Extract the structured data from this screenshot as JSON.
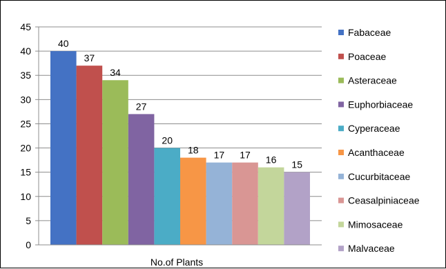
{
  "chart_data": {
    "type": "bar",
    "xlabel": "No.of Plants",
    "ylabel": "",
    "title": "",
    "ylim": [
      0,
      45
    ],
    "yticks": [
      0,
      5,
      10,
      15,
      20,
      25,
      30,
      35,
      40,
      45
    ],
    "grid": true,
    "legend_position": "right",
    "series": [
      {
        "name": "Fabaceae",
        "value": 40,
        "color": "#4472C4"
      },
      {
        "name": "Poaceae",
        "value": 37,
        "color": "#C0504D"
      },
      {
        "name": "Asteraceae",
        "value": 34,
        "color": "#9BBB59"
      },
      {
        "name": "Euphorbiaceae",
        "value": 27,
        "color": "#8064A2"
      },
      {
        "name": "Cyperaceae",
        "value": 20,
        "color": "#4BACC6"
      },
      {
        "name": "Acanthaceae",
        "value": 18,
        "color": "#F79646"
      },
      {
        "name": "Cucurbitaceae",
        "value": 17,
        "color": "#95B3D7"
      },
      {
        "name": "Ceasalpiniaceae",
        "value": 17,
        "color": "#D99694"
      },
      {
        "name": "Mimosaceae",
        "value": 16,
        "color": "#C3D69B"
      },
      {
        "name": "Malvaceae",
        "value": 15,
        "color": "#B2A2C7"
      }
    ]
  }
}
